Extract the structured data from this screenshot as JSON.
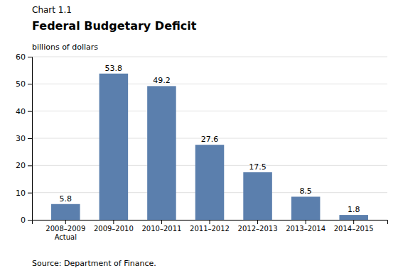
{
  "chart_data": {
    "type": "bar",
    "title": "Federal Budgetary Deficit",
    "annotations": [
      "Chart 1.1",
      "Source: Department of Finance."
    ],
    "ylabel": "billions of dollars",
    "categories": [
      "2008–2009\nActual",
      "2009–2010",
      "2010–2011",
      "2011–2012",
      "2012–2013",
      "2013–2014",
      "2014–2015"
    ],
    "values": [
      5.8,
      53.8,
      49.2,
      27.6,
      17.5,
      8.5,
      1.8
    ],
    "color": "#5b7fad",
    "ylim": [
      0,
      60
    ],
    "yticks": [
      0,
      10,
      20,
      30,
      40,
      50,
      60
    ],
    "grid": true,
    "data_labels": true
  }
}
